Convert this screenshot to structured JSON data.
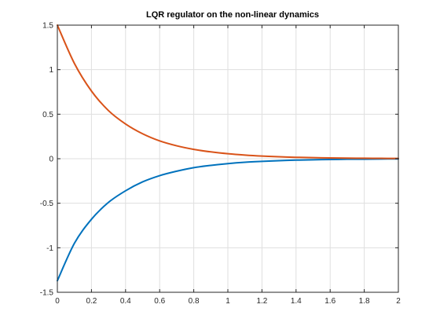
{
  "chart_data": {
    "type": "line",
    "title": "LQR regulator on the non-linear dynamics",
    "xlabel": "",
    "ylabel": "",
    "xlim": [
      0,
      2
    ],
    "ylim": [
      -1.5,
      1.5
    ],
    "xticks": [
      0,
      0.2,
      0.4,
      0.6,
      0.8,
      1,
      1.2,
      1.4,
      1.6,
      1.8,
      2
    ],
    "yticks": [
      -1.5,
      -1,
      -0.5,
      0,
      0.5,
      1,
      1.5
    ],
    "xtick_labels": [
      "0",
      "0.2",
      "0.4",
      "0.6",
      "0.8",
      "1",
      "1.2",
      "1.4",
      "1.6",
      "1.8",
      "2"
    ],
    "ytick_labels": [
      "-1.5",
      "-1",
      "-0.5",
      "0",
      "0.5",
      "1",
      "1.5"
    ],
    "grid": true,
    "x": [
      0,
      0.1,
      0.2,
      0.3,
      0.4,
      0.5,
      0.6,
      0.7,
      0.8,
      0.9,
      1.0,
      1.1,
      1.2,
      1.3,
      1.4,
      1.5,
      1.6,
      1.7,
      1.8,
      1.9,
      2.0
    ],
    "series": [
      {
        "color": "#0072BD",
        "values": [
          -1.37,
          -0.95,
          -0.68,
          -0.49,
          -0.36,
          -0.26,
          -0.19,
          -0.14,
          -0.1,
          -0.075,
          -0.055,
          -0.04,
          -0.03,
          -0.022,
          -0.016,
          -0.012,
          -0.009,
          -0.006,
          -0.005,
          -0.003,
          -0.002
        ]
      },
      {
        "color": "#D95319",
        "values": [
          1.5,
          1.07,
          0.76,
          0.54,
          0.39,
          0.28,
          0.2,
          0.145,
          0.105,
          0.077,
          0.056,
          0.041,
          0.03,
          0.022,
          0.016,
          0.012,
          0.009,
          0.007,
          0.005,
          0.004,
          0.003
        ]
      }
    ]
  }
}
